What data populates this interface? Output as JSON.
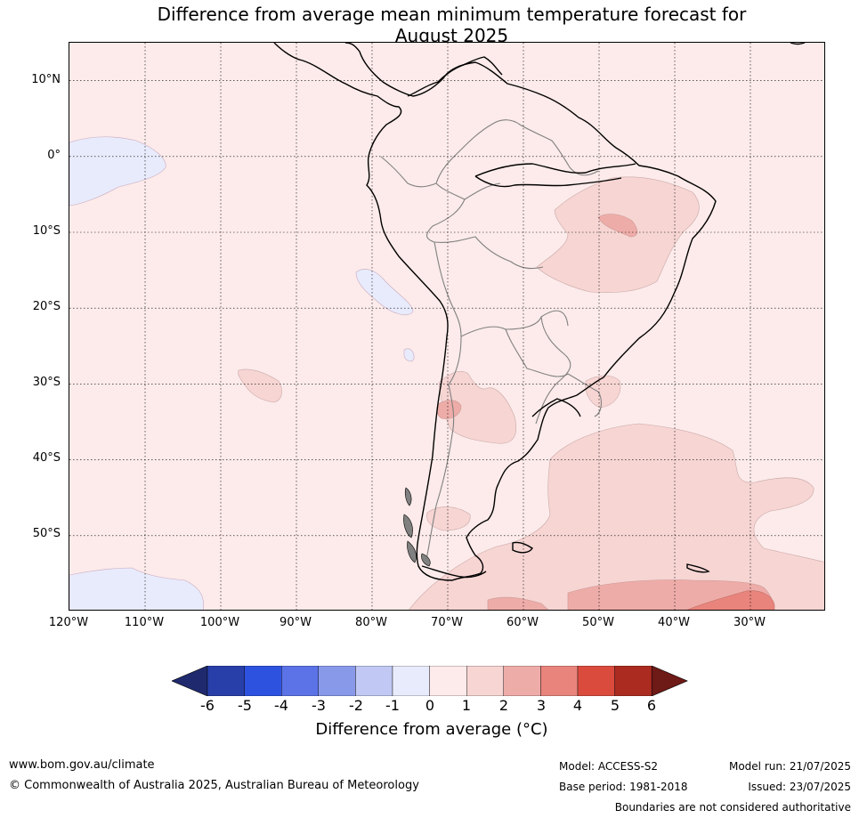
{
  "title_line1": "Difference from average mean minimum temperature forecast for",
  "title_line2": "August 2025",
  "map": {
    "projection": "equirectangular",
    "lon_range": [
      -120,
      -20
    ],
    "lat_range": [
      -60,
      15
    ],
    "latitude_labels": [
      "10°N",
      "0°",
      "10°S",
      "20°S",
      "30°S",
      "40°S",
      "50°S"
    ],
    "longitude_labels": [
      "120°W",
      "110°W",
      "100°W",
      "90°W",
      "80°W",
      "70°W",
      "60°W",
      "50°W",
      "40°W",
      "30°W"
    ],
    "background_class": "0 to 1",
    "anomaly_regions": [
      {
        "class": "-1 to 0",
        "area": "equatorial Pacific west of Galápagos"
      },
      {
        "class": "-1 to 0",
        "area": "south-east Pacific off Peru"
      },
      {
        "class": "-1 to 0",
        "area": "far south-west Pacific"
      },
      {
        "class": "1 to 2",
        "area": "north-east Brazil"
      },
      {
        "class": "2 to 3",
        "area": "central north-east Brazil"
      },
      {
        "class": "1 to 2",
        "area": "central Argentina"
      },
      {
        "class": "2 to 3",
        "area": "Andes near 34°S"
      },
      {
        "class": "1 to 2",
        "area": "south-west Atlantic"
      },
      {
        "class": "2 to 3",
        "area": "southern Atlantic near 55°S–60°S"
      },
      {
        "class": "3 to 4",
        "area": "South Atlantic near 35°W–30°W, 58°S–60°S"
      }
    ]
  },
  "colorbar": {
    "ticks": [
      "-6",
      "-5",
      "-4",
      "-3",
      "-2",
      "-1",
      "0",
      "1",
      "2",
      "3",
      "4",
      "5",
      "6"
    ],
    "colors": [
      "#1f2a6e",
      "#283ea8",
      "#2e52e0",
      "#5b73e6",
      "#8899ea",
      "#c1c8f3",
      "#e8ebfb",
      "#fcebea",
      "#f6d5d3",
      "#eeaca8",
      "#e8847c",
      "#da4b3e",
      "#ab2b21",
      "#6e1a17"
    ],
    "label": "Difference from average (°C)"
  },
  "footer": {
    "website": "www.bom.gov.au/climate",
    "copyright": "© Commonwealth of Australia 2025, Australian Bureau of Meteorology",
    "model": "Model: ACCESS-S2",
    "base_period": "Base period: 1981-2018",
    "model_run": "Model run: 21/07/2025",
    "issued": "Issued: 23/07/2025",
    "disclaimer": "Boundaries are not considered authoritative"
  }
}
